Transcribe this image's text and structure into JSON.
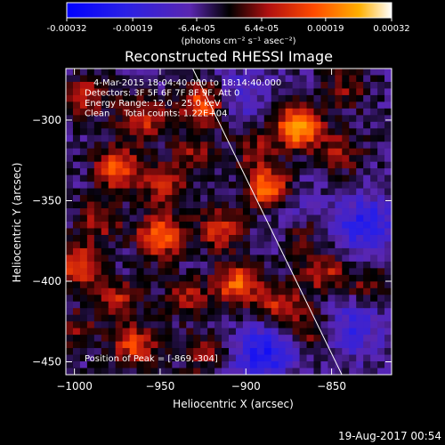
{
  "chart_data": {
    "type": "heatmap",
    "title": "Reconstructed RHESSI Image",
    "colorbar": {
      "ticks": [
        "-0.00032",
        "-0.00019",
        "-6.4e-05",
        "6.4e-05",
        "0.00019",
        "0.00032"
      ],
      "tick_values": [
        -0.00032,
        -0.00019,
        -6.4e-05,
        6.4e-05,
        0.00019,
        0.00032
      ],
      "range": [
        -0.00032,
        0.00032
      ],
      "unit_label": "(photons cm⁻² s⁻¹ asec⁻²)"
    },
    "xlabel": "Heliocentric X (arcsec)",
    "ylabel": "Heliocentric Y (arcsec)",
    "xlim": [
      -1005,
      -815
    ],
    "ylim": [
      -458,
      -268
    ],
    "xticks": [
      -1000,
      -950,
      -900,
      -850
    ],
    "xtick_labels": [
      "−1000",
      "−950",
      "−900",
      "−850"
    ],
    "yticks": [
      -300,
      -350,
      -400,
      -450
    ],
    "ytick_labels": [
      "−300",
      "−350",
      "−400",
      "−450"
    ],
    "annotations": [
      "4-Mar-2015 18:04:40.000 to 18:14:40.000",
      "Detectors: 3F 5F 6F 7F 8F 9F, Att 0",
      "Energy Range: 12.0 - 25.0 keV",
      "Clean     Total counts: 1.22E+04"
    ],
    "peak_label": "Position of Peak = [-869,-304]",
    "peak": {
      "x": -869,
      "y": -304
    },
    "limb_line": [
      {
        "x": -931,
        "y": -268
      },
      {
        "x": -844,
        "y": -458
      }
    ],
    "bright_sources": [
      {
        "x": -869,
        "y": -304,
        "value": 0.00032
      },
      {
        "x": -887,
        "y": -343,
        "value": 0.00028
      },
      {
        "x": -925,
        "y": -290,
        "value": 0.00022
      },
      {
        "x": -960,
        "y": -300,
        "value": 0.00017
      },
      {
        "x": -975,
        "y": -330,
        "value": 0.00021
      },
      {
        "x": -948,
        "y": -340,
        "value": 0.00015
      },
      {
        "x": -950,
        "y": -372,
        "value": 0.00024
      },
      {
        "x": -915,
        "y": -368,
        "value": 0.00016
      },
      {
        "x": -905,
        "y": -402,
        "value": 0.00022
      },
      {
        "x": -998,
        "y": -390,
        "value": 0.0002
      },
      {
        "x": -985,
        "y": -362,
        "value": 0.00012
      },
      {
        "x": -975,
        "y": -412,
        "value": 0.00014
      },
      {
        "x": -935,
        "y": -410,
        "value": 0.00012
      },
      {
        "x": -965,
        "y": -440,
        "value": 0.00018
      },
      {
        "x": -925,
        "y": -445,
        "value": 0.0001
      },
      {
        "x": -880,
        "y": -415,
        "value": 0.00016
      },
      {
        "x": -868,
        "y": -370,
        "value": 8e-05
      },
      {
        "x": -855,
        "y": -395,
        "value": 0.00014
      },
      {
        "x": -860,
        "y": -432,
        "value": 0.0001
      },
      {
        "x": -992,
        "y": -285,
        "value": 0.00014
      },
      {
        "x": -895,
        "y": -318,
        "value": 0.0001
      },
      {
        "x": -845,
        "y": -320,
        "value": 0.00011
      },
      {
        "x": -842,
        "y": -280,
        "value": 9e-05
      },
      {
        "x": -930,
        "y": -320,
        "value": 0.0001
      },
      {
        "x": -1000,
        "y": -430,
        "value": 9e-05
      },
      {
        "x": -830,
        "y": -402,
        "value": 8e-05
      }
    ],
    "dim_regions": [
      {
        "x": -830,
        "y": -365,
        "value": -0.00016
      },
      {
        "x": -890,
        "y": -445,
        "value": -0.00018
      },
      {
        "x": -838,
        "y": -430,
        "value": -0.00012
      },
      {
        "x": -905,
        "y": -285,
        "value": -8e-05
      },
      {
        "x": -875,
        "y": -355,
        "value": -7e-05
      }
    ]
  },
  "timestamp": "19-Aug-2017 00:54"
}
